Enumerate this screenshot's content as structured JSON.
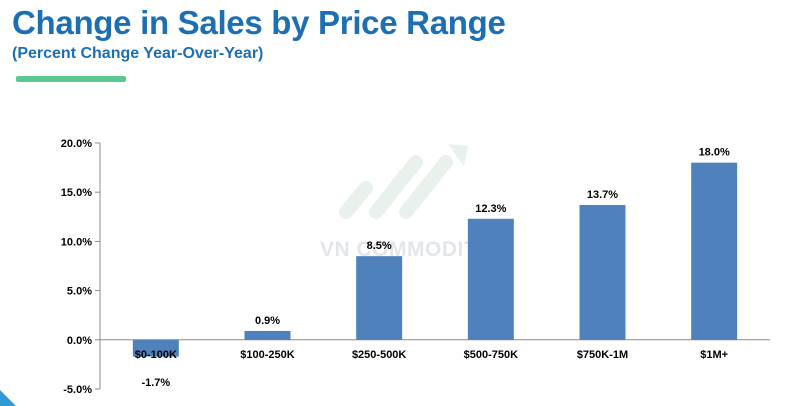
{
  "header": {
    "title": "Change in Sales by Price Range",
    "subtitle": "(Percent Change Year-Over-Year)"
  },
  "watermark": {
    "text": "VN COMMODITIES"
  },
  "colors": {
    "title": "#1c6fb4",
    "accent": "#59c98f",
    "bar": "#4f81bd",
    "corner": "#2f9bd6"
  },
  "chart_data": {
    "type": "bar",
    "title": "",
    "xlabel": "",
    "ylabel": "",
    "categories": [
      "$0-100K",
      "$100-250K",
      "$250-500K",
      "$500-750K",
      "$750K-1M",
      "$1M+"
    ],
    "values": [
      -1.7,
      0.9,
      8.5,
      12.3,
      13.7,
      18.0
    ],
    "data_labels": [
      "-1.7%",
      "0.9%",
      "8.5%",
      "12.3%",
      "13.7%",
      "18.0%"
    ],
    "ylim": [
      -5,
      20
    ],
    "yticks": [
      20,
      15,
      10,
      5,
      0,
      -5
    ],
    "ytick_labels": [
      "20.0%",
      "15.0%",
      "10.0%",
      "5.0%",
      "0.0%",
      "-5.0%"
    ],
    "grid": false,
    "legend": "none"
  }
}
